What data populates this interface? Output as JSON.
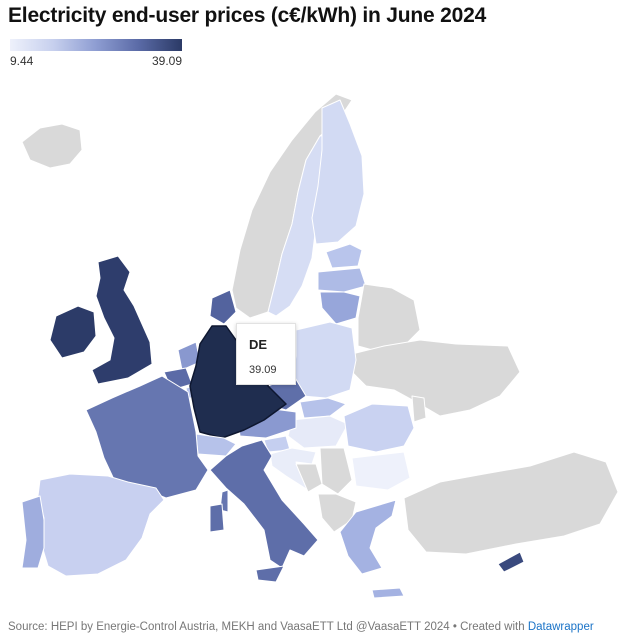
{
  "title": "Electricity end-user prices (c€/kWh) in June 2024",
  "legend": {
    "min": "9.44",
    "max": "39.09"
  },
  "tooltip": {
    "country": "DE",
    "value": "39.09"
  },
  "footer": {
    "source": "Source: HEPI by Energie-Control Austria, MEKH and VaasaETT Ltd @VaasaETT 2024 • Created with ",
    "link": "Datawrapper"
  },
  "colors": {
    "no_data": "#d9d9d9",
    "scale_low": "#eef1fb",
    "scale_high": "#2b3a66",
    "highlight": "#1f2d4f",
    "link": "#1a73c7"
  }
}
